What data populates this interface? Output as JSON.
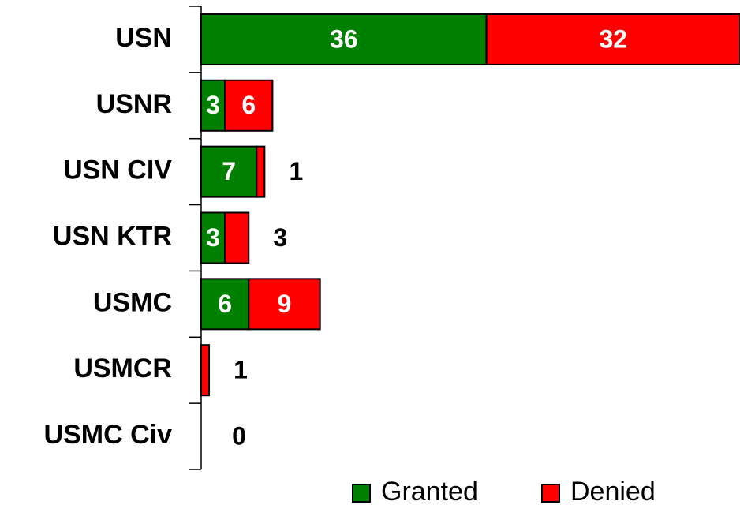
{
  "chart_data": {
    "type": "stacked-barh",
    "categories": [
      "USN",
      "USNR",
      "USN CIV",
      "USN KTR",
      "USMC",
      "USMCR",
      "USMC Civ"
    ],
    "series": [
      {
        "name": "Granted",
        "color": "#008000",
        "values": [
          36,
          3,
          7,
          3,
          6,
          0,
          0
        ]
      },
      {
        "name": "Denied",
        "color": "#ff0000",
        "values": [
          32,
          6,
          1,
          3,
          9,
          1,
          0
        ]
      }
    ],
    "xlim": [
      0,
      68
    ],
    "legend": "bottom"
  }
}
